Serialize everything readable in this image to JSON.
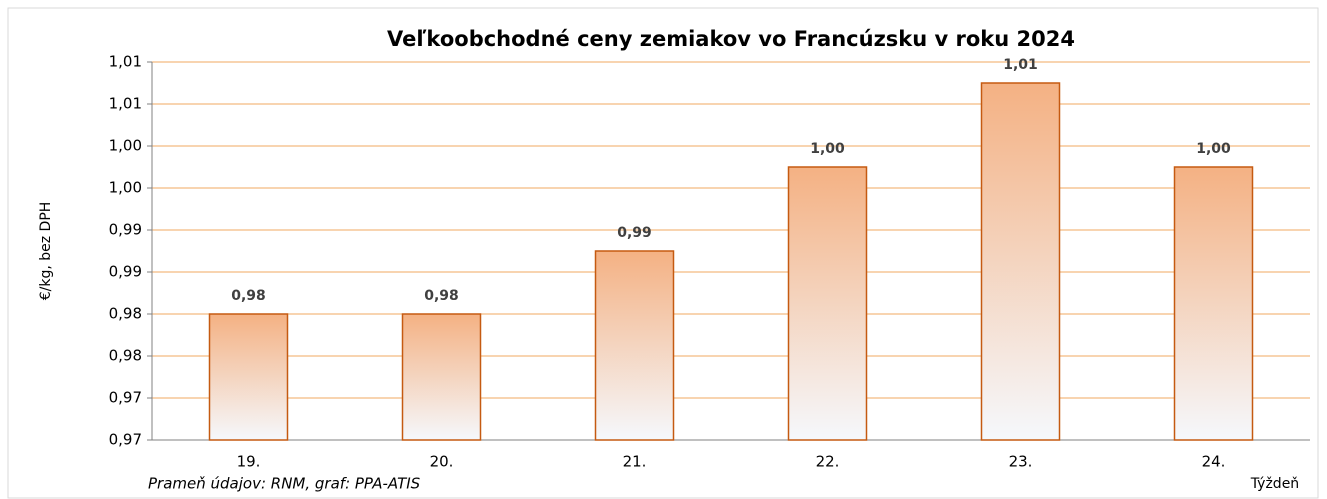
{
  "chart_data": {
    "type": "bar",
    "title": "Veľkoobchodné ceny zemiakov vo Francúzsku v roku 2024",
    "y_label": "€/kg, bez DPH",
    "x_label": "Týždeň",
    "source": "Prameň údajov: RNM, graf: PPA-ATIS",
    "categories": [
      "19.",
      "20.",
      "21.",
      "22.",
      "23.",
      "24."
    ],
    "values": [
      0.98,
      0.98,
      0.9875,
      0.9975,
      1.0075,
      0.9975
    ],
    "value_labels": [
      "0,98",
      "0,98",
      "0,99",
      "1,00",
      "1,01",
      "1,00"
    ],
    "color": "#f4b183",
    "ylim": [
      0.965,
      1.01
    ],
    "yticks": [
      {
        "value": 0.965,
        "label": "0,97"
      },
      {
        "value": 0.97,
        "label": "0,97"
      },
      {
        "value": 0.975,
        "label": "0,98"
      },
      {
        "value": 0.98,
        "label": "0,98"
      },
      {
        "value": 0.985,
        "label": "0,99"
      },
      {
        "value": 0.99,
        "label": "0,99"
      },
      {
        "value": 0.995,
        "label": "1,00"
      },
      {
        "value": 1.0,
        "label": "1,00"
      },
      {
        "value": 1.005,
        "label": "1,01"
      },
      {
        "value": 1.01,
        "label": "1,01"
      }
    ],
    "grid": true
  }
}
